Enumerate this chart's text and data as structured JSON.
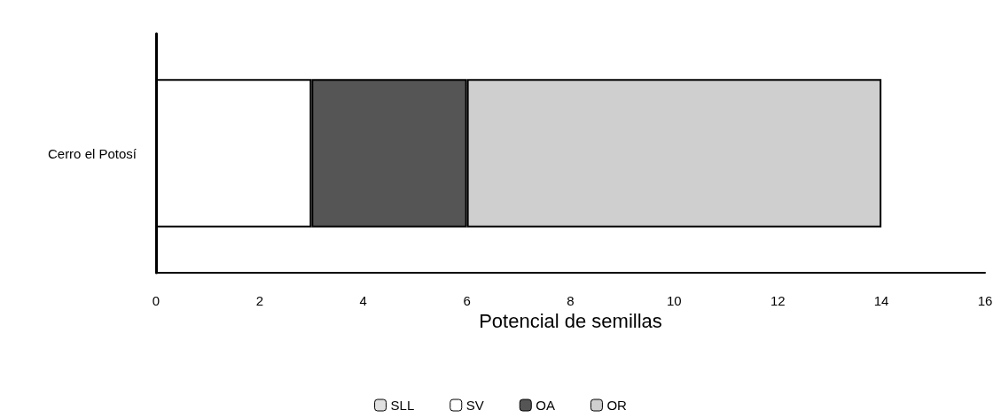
{
  "chart_data": {
    "type": "bar",
    "orientation": "horizontal",
    "stacked": true,
    "xlabel": "Potencial de semillas",
    "categories": [
      "Cerro el Potosí"
    ],
    "series": [
      {
        "name": "SLL",
        "color": "#e0e0e0",
        "values": [
          0
        ]
      },
      {
        "name": "SV",
        "color": "#ffffff",
        "values": [
          3
        ]
      },
      {
        "name": "OA",
        "color": "#555555",
        "values": [
          3
        ]
      },
      {
        "name": "OR",
        "color": "#cfcfcf",
        "values": [
          8
        ]
      }
    ],
    "xlim": [
      0,
      16
    ],
    "xticks": [
      0,
      2,
      4,
      6,
      8,
      10,
      12,
      14,
      16
    ],
    "grid": false,
    "legend": "bottom"
  }
}
